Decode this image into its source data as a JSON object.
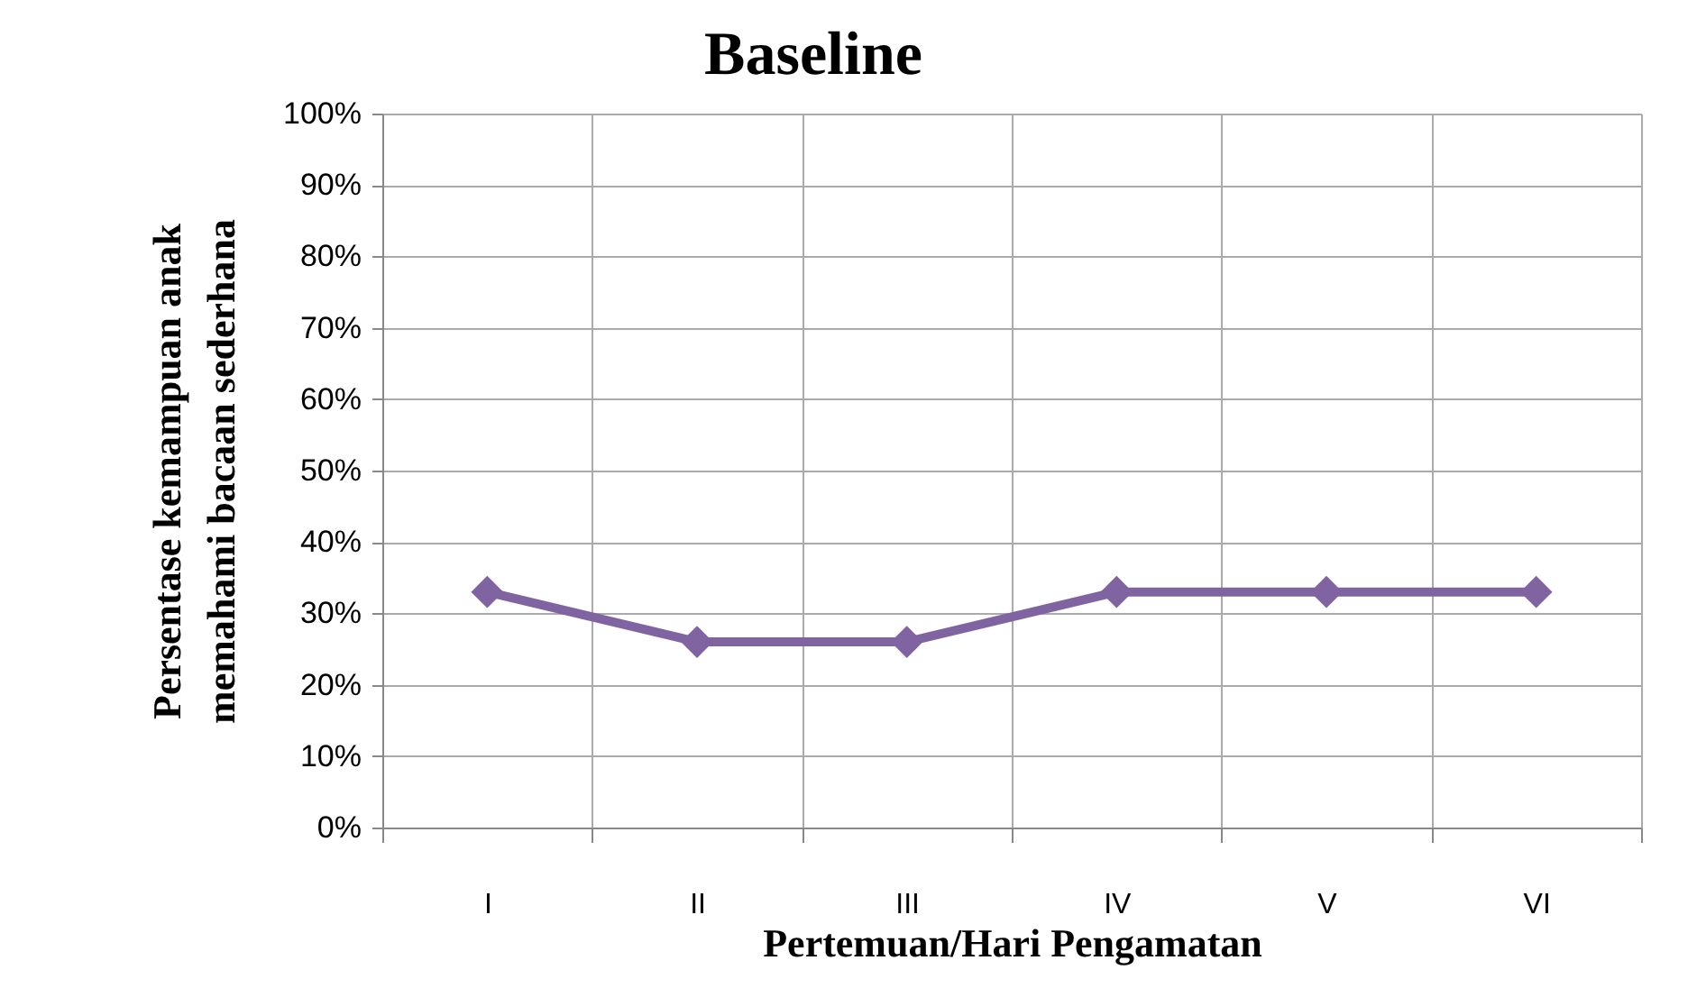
{
  "chart_data": {
    "type": "line",
    "title": "Baseline",
    "xlabel": "Pertemuan/Hari Pengamatan",
    "ylabel": "Persentase  kemampuan anak\nmemahami bacaan sederhana",
    "categories": [
      "I",
      "II",
      "III",
      "IV",
      "V",
      "VI"
    ],
    "series": [
      {
        "color": "#8064a2",
        "values": [
          33,
          26,
          26,
          33,
          33,
          33
        ]
      }
    ],
    "ylim": [
      0,
      100
    ],
    "yticks": [
      {
        "value": 0,
        "label": "0%"
      },
      {
        "value": 10,
        "label": "10%"
      },
      {
        "value": 20,
        "label": "20%"
      },
      {
        "value": 30,
        "label": "30%"
      },
      {
        "value": 40,
        "label": "40%"
      },
      {
        "value": 50,
        "label": "50%"
      },
      {
        "value": 60,
        "label": "60%"
      },
      {
        "value": 70,
        "label": "70%"
      },
      {
        "value": 80,
        "label": "80%"
      },
      {
        "value": 90,
        "label": "90%"
      },
      {
        "value": 100,
        "label": "100%"
      }
    ],
    "grid": true,
    "marker": "diamond",
    "line_style": "solid",
    "legend": false
  }
}
